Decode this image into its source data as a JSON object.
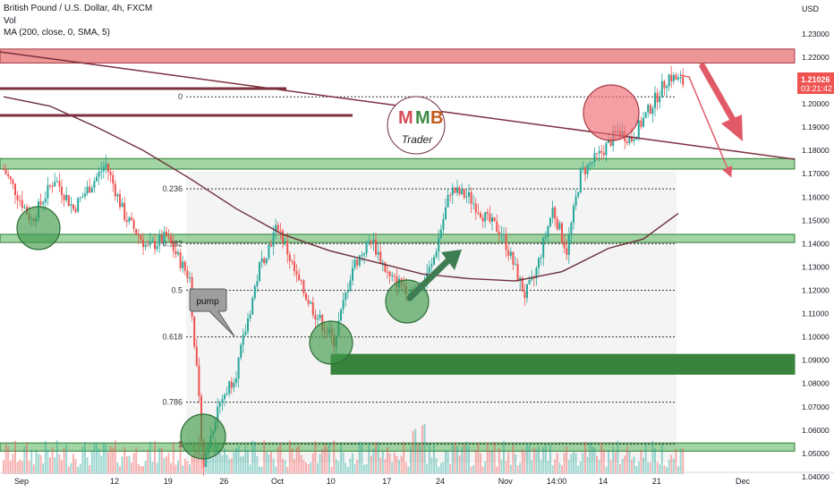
{
  "header": {
    "symbol_title": "British Pound / U.S. Dollar, 4h, FXCM",
    "volume_label": "Vol",
    "ma_label": "MA (200, close, 0, SMA, 5)",
    "currency": "USD"
  },
  "price_tag": {
    "price": "1.21026",
    "countdown": "03:21:42"
  },
  "logo": {
    "letters": [
      "M",
      "M"
    ],
    "coin_symbol": "B",
    "word": "Trader"
  },
  "annotations": {
    "pump_label": "pump"
  },
  "colors": {
    "up": "#26a69a",
    "down": "#ef5350",
    "ma": "#6d2f3b",
    "trend": "#7d3040",
    "red_zone": "#e57373",
    "green_zone": "#81c784",
    "dark_green_zone": "#2e7d32",
    "arrow_red": "#e05a68",
    "arrow_green": "#3e7d52"
  },
  "chart_data": {
    "type": "candlestick",
    "y_axis": {
      "unit": "USD",
      "range": [
        1.035,
        1.243
      ],
      "ticks": [
        "1.23000",
        "1.22000",
        "1.21000",
        "1.20000",
        "1.19000",
        "1.18000",
        "1.17000",
        "1.16000",
        "1.15000",
        "1.14000",
        "1.13000",
        "1.12000",
        "1.11000",
        "1.10000",
        "1.09000",
        "1.08000",
        "1.07000",
        "1.06000",
        "1.05000",
        "1.04000"
      ]
    },
    "x_axis": {
      "labels": [
        {
          "text": "Sep",
          "bar": 0
        },
        {
          "text": "12",
          "bar": 40
        },
        {
          "text": "19",
          "bar": 63
        },
        {
          "text": "26",
          "bar": 87
        },
        {
          "text": "Oct",
          "bar": 110
        },
        {
          "text": "10",
          "bar": 133
        },
        {
          "text": "17",
          "bar": 157
        },
        {
          "text": "24",
          "bar": 180
        },
        {
          "text": "Nov",
          "bar": 208
        },
        {
          "text": "14:00",
          "bar": 230
        },
        {
          "text": "14",
          "bar": 250
        },
        {
          "text": "21",
          "bar": 273
        },
        {
          "text": "Dec",
          "bar": 310
        }
      ]
    },
    "candle_path": [
      [
        0,
        1.172
      ],
      [
        12,
        1.15
      ],
      [
        22,
        1.168
      ],
      [
        30,
        1.155
      ],
      [
        44,
        1.174
      ],
      [
        52,
        1.152
      ],
      [
        62,
        1.138
      ],
      [
        70,
        1.143
      ],
      [
        80,
        1.125
      ],
      [
        86,
        1.045
      ],
      [
        92,
        1.07
      ],
      [
        100,
        1.085
      ],
      [
        110,
        1.13
      ],
      [
        118,
        1.148
      ],
      [
        126,
        1.125
      ],
      [
        134,
        1.11
      ],
      [
        142,
        1.098
      ],
      [
        150,
        1.13
      ],
      [
        158,
        1.142
      ],
      [
        166,
        1.125
      ],
      [
        176,
        1.12
      ],
      [
        184,
        1.13
      ],
      [
        192,
        1.163
      ],
      [
        200,
        1.16
      ],
      [
        208,
        1.15
      ],
      [
        214,
        1.145
      ],
      [
        224,
        1.118
      ],
      [
        228,
        1.125
      ],
      [
        236,
        1.155
      ],
      [
        242,
        1.137
      ],
      [
        248,
        1.17
      ],
      [
        256,
        1.178
      ],
      [
        264,
        1.188
      ],
      [
        270,
        1.185
      ],
      [
        276,
        1.195
      ],
      [
        286,
        1.212
      ],
      [
        292,
        1.209
      ]
    ],
    "moving_average": {
      "name": "MA (200, close, 0, SMA, 5)",
      "points": [
        [
          0,
          1.203
        ],
        [
          20,
          1.199
        ],
        [
          40,
          1.19
        ],
        [
          60,
          1.18
        ],
        [
          80,
          1.168
        ],
        [
          100,
          1.155
        ],
        [
          120,
          1.144
        ],
        [
          140,
          1.137
        ],
        [
          160,
          1.132
        ],
        [
          180,
          1.127
        ],
        [
          200,
          1.125
        ],
        [
          220,
          1.124
        ],
        [
          240,
          1.128
        ],
        [
          260,
          1.138
        ],
        [
          275,
          1.142
        ],
        [
          290,
          1.153
        ]
      ]
    },
    "fibonacci": [
      {
        "label": "0",
        "level": 1.203
      },
      {
        "label": "0.236",
        "level": 1.1635
      },
      {
        "label": "0.382",
        "level": 1.14
      },
      {
        "label": "0.5",
        "level": 1.12
      },
      {
        "label": "0.618",
        "level": 1.1
      },
      {
        "label": "0.786",
        "level": 1.072
      },
      {
        "label": "1",
        "level": 1.054
      }
    ],
    "zones": [
      {
        "kind": "red",
        "from": 1.2175,
        "to": 1.2235
      },
      {
        "kind": "green",
        "from": 1.172,
        "to": 1.1765
      },
      {
        "kind": "green",
        "from": 1.1405,
        "to": 1.144
      },
      {
        "kind": "green",
        "from": 1.051,
        "to": 1.0545
      },
      {
        "kind": "dark-green",
        "from": 1.084,
        "to": 1.0925
      }
    ]
  }
}
